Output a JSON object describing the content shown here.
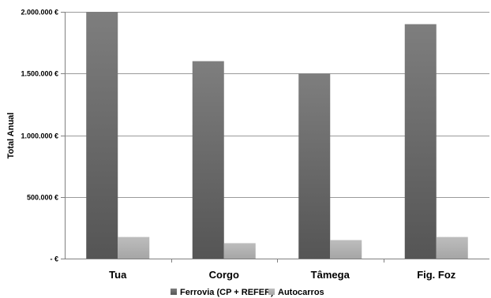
{
  "chart_data": {
    "type": "bar",
    "title": "",
    "xlabel": "",
    "ylabel": "Total Anual",
    "categories": [
      "Tua",
      "Corgo",
      "Tâmega",
      "Fig. Foz"
    ],
    "series": [
      {
        "name": "Ferrovia (CP + REFER)",
        "values": [
          2000000,
          1600000,
          1500000,
          1900000
        ],
        "color": "#7a7a7a"
      },
      {
        "name": "Autocarros",
        "values": [
          175000,
          125000,
          150000,
          175000
        ],
        "color": "#b3b3b3"
      }
    ],
    "ylim": [
      0,
      2000000
    ],
    "yticks": [
      0,
      500000,
      1000000,
      1500000,
      2000000
    ],
    "ytick_labels": [
      "- €",
      "500.000 €",
      "1.000.000 €",
      "1.500.000 €",
      "2.000.000 €"
    ],
    "grid": true,
    "legend": "bottom"
  }
}
